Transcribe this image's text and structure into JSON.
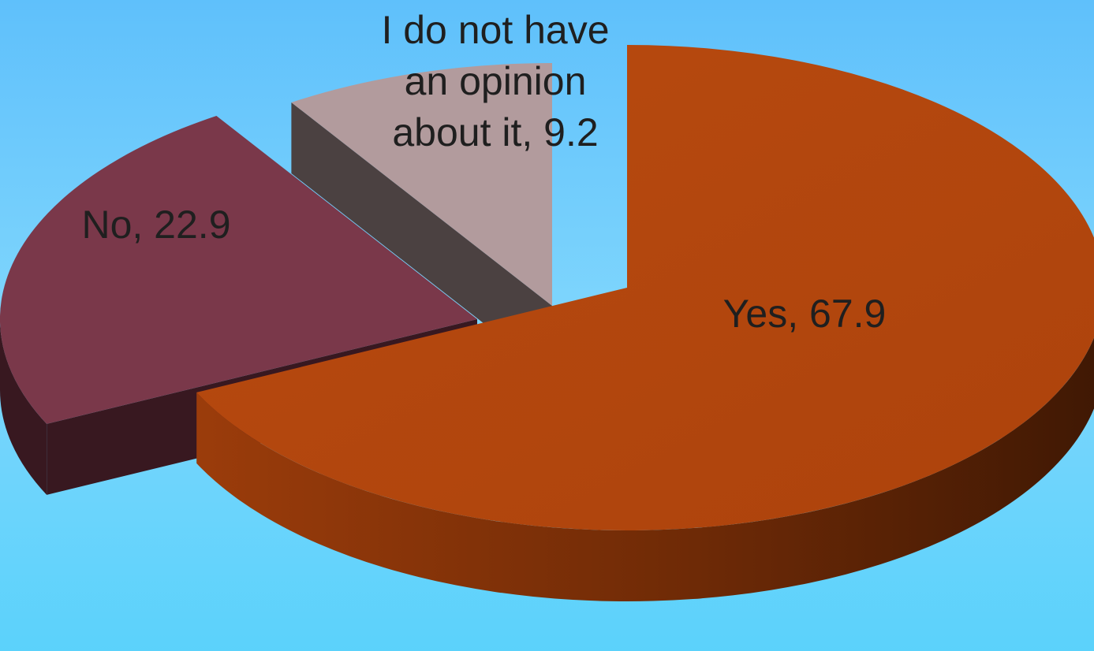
{
  "chart_data": {
    "type": "pie",
    "style": "3d-exploded",
    "categories": [
      "Yes",
      "No",
      "I do not have an opinion about it"
    ],
    "values": [
      67.9,
      22.9,
      9.2
    ],
    "data_labels": [
      [
        "Yes, 67.9"
      ],
      [
        "No, 22.9"
      ],
      [
        "I do not have",
        "an opinion",
        "about it, 9.2"
      ]
    ],
    "colors": {
      "yes_top": "#b1460d",
      "yes_side": "#7a2f08",
      "no_top": "#7a384a",
      "no_side": "#381820",
      "opinion_top": "#b29b9d",
      "opinion_side": "#4b4141"
    },
    "background_color": "#6fcdfc"
  }
}
